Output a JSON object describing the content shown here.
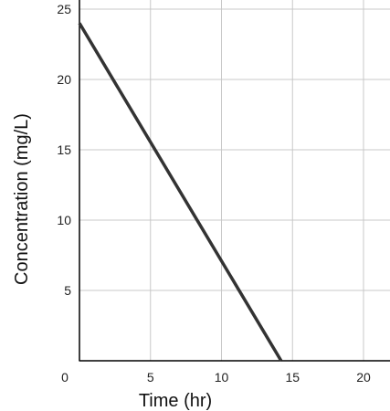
{
  "chart_data": {
    "type": "line",
    "xlabel": "Time (hr)",
    "ylabel": "Concentration (mg/L)",
    "xlim": [
      0,
      22
    ],
    "ylim": [
      0,
      25
    ],
    "x_ticks": [
      0,
      5,
      10,
      15,
      20
    ],
    "y_ticks": [
      5,
      10,
      15,
      20,
      25
    ],
    "grid": true,
    "series": [
      {
        "x": [
          0,
          14.2
        ],
        "y": [
          24,
          0
        ]
      }
    ],
    "colors": {
      "line": "#333333",
      "grid": "#c8c8c8",
      "axis": "#000000"
    }
  }
}
